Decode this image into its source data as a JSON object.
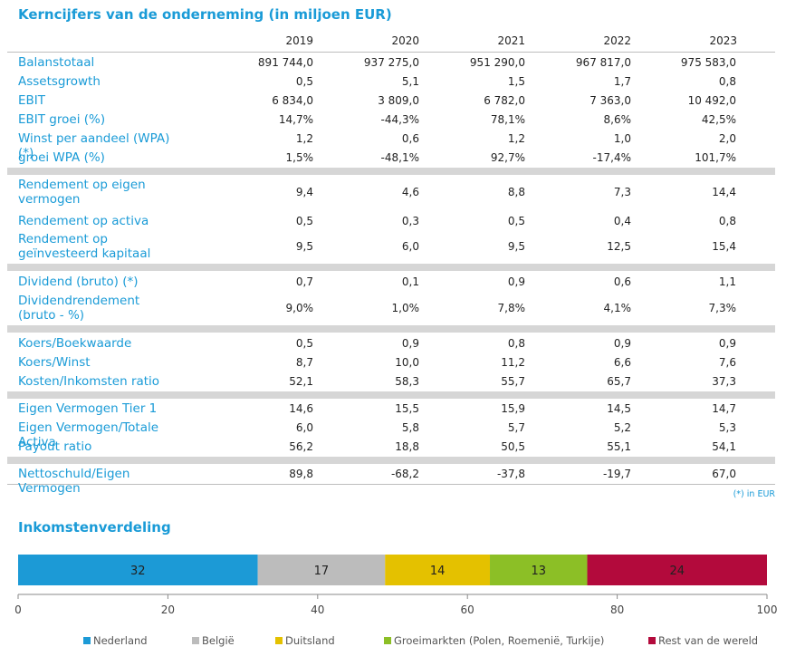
{
  "table": {
    "title": "Kerncijfers van de onderneming (in miljoen EUR)",
    "years": [
      "2019",
      "2020",
      "2021",
      "2022",
      "2023"
    ],
    "note": "(*) in EUR",
    "rows": [
      {
        "label": "Balanstotaal",
        "values": [
          "891 744,0",
          "937 275,0",
          "951 290,0",
          "967 817,0",
          "975 583,0"
        ]
      },
      {
        "label": "Assetsgrowth",
        "values": [
          "0,5",
          "5,1",
          "1,5",
          "1,7",
          "0,8"
        ]
      },
      {
        "label": "EBIT",
        "values": [
          "6 834,0",
          "3 809,0",
          "6 782,0",
          "7 363,0",
          "10 492,0"
        ]
      },
      {
        "label": "EBIT groei (%)",
        "values": [
          "14,7%",
          "-44,3%",
          "78,1%",
          "8,6%",
          "42,5%"
        ]
      },
      {
        "label": "Winst per aandeel (WPA) (*)",
        "values": [
          "1,2",
          "0,6",
          "1,2",
          "1,0",
          "2,0"
        ]
      },
      {
        "label": "groei WPA (%)",
        "values": [
          "1,5%",
          "-48,1%",
          "92,7%",
          "-17,4%",
          "101,7%"
        ]
      },
      {
        "label": "Rendement op eigen vermogen",
        "values": [
          "9,4",
          "4,6",
          "8,8",
          "7,3",
          "14,4"
        ]
      },
      {
        "label": "Rendement op activa",
        "values": [
          "0,5",
          "0,3",
          "0,5",
          "0,4",
          "0,8"
        ]
      },
      {
        "label": "Rendement op geïnvesteerd kapitaal",
        "values": [
          "9,5",
          "6,0",
          "9,5",
          "12,5",
          "15,4"
        ]
      },
      {
        "label": "Dividend (bruto) (*)",
        "values": [
          "0,7",
          "0,1",
          "0,9",
          "0,6",
          "1,1"
        ]
      },
      {
        "label": "Dividendrendement (bruto - %)",
        "values": [
          "9,0%",
          "1,0%",
          "7,8%",
          "4,1%",
          "7,3%"
        ]
      },
      {
        "label": "Koers/Boekwaarde",
        "values": [
          "0,5",
          "0,9",
          "0,8",
          "0,9",
          "0,9"
        ]
      },
      {
        "label": "Koers/Winst",
        "values": [
          "8,7",
          "10,0",
          "11,2",
          "6,6",
          "7,6"
        ]
      },
      {
        "label": "Kosten/Inkomsten ratio",
        "values": [
          "52,1",
          "58,3",
          "55,7",
          "65,7",
          "37,3"
        ]
      },
      {
        "label": "Eigen Vermogen Tier 1",
        "values": [
          "14,6",
          "15,5",
          "15,9",
          "14,5",
          "14,7"
        ]
      },
      {
        "label": "Eigen Vermogen/Totale Activa",
        "values": [
          "6,0",
          "5,8",
          "5,7",
          "5,2",
          "5,3"
        ]
      },
      {
        "label": "Payout ratio",
        "values": [
          "56,2",
          "18,8",
          "50,5",
          "55,1",
          "54,1"
        ]
      },
      {
        "label": "Nettoschuld/Eigen Vermogen",
        "values": [
          "89,8",
          "-68,2",
          "-37,8",
          "-19,7",
          "67,0"
        ]
      }
    ]
  },
  "chart_data": {
    "type": "bar",
    "orientation": "horizontal-stacked",
    "title": "Inkomstenverdeling",
    "xlim": [
      0,
      100
    ],
    "xticks": [
      "0",
      "20",
      "40",
      "60",
      "80",
      "100"
    ],
    "legend_position": "bottom",
    "series": [
      {
        "name": "Nederland",
        "value": 32,
        "color": "#1c9ad6"
      },
      {
        "name": "België",
        "value": 17,
        "color": "#bcbcbc"
      },
      {
        "name": "Duitsland",
        "value": 14,
        "color": "#e4c100"
      },
      {
        "name": "Groeimarkten (Polen, Roemenië, Turkije)",
        "value": 13,
        "color": "#8cbf26"
      },
      {
        "name": "Rest van de wereld",
        "value": 24,
        "color": "#b30a3c"
      }
    ]
  }
}
